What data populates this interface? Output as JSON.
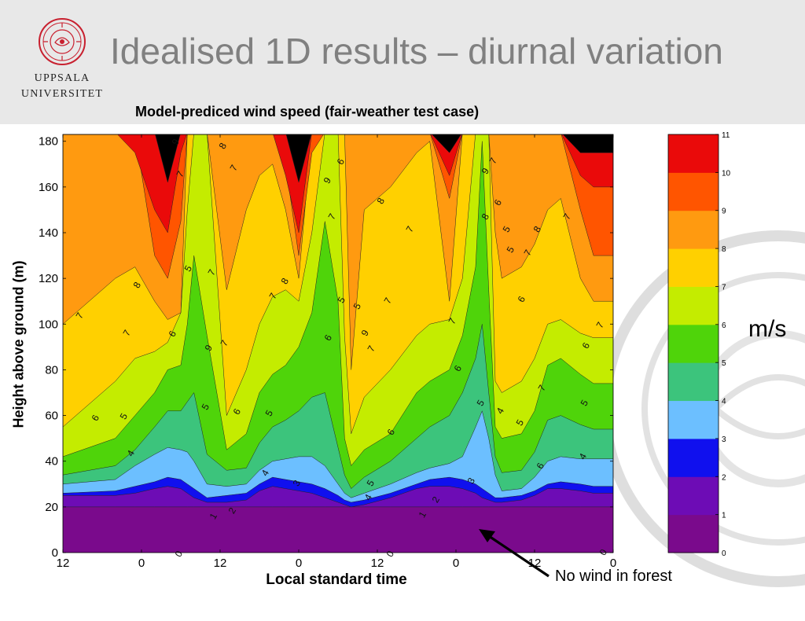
{
  "slide": {
    "title": "Idealised 1D results – diurnal variation",
    "logo_line1": "UPPSALA",
    "logo_line2": "UNIVERSITET",
    "colors": {
      "header_band": "#e8e8e8",
      "title": "#808080"
    }
  },
  "chart_data": {
    "type": "contour",
    "title": "Model-prediced wind speed (fair-weather test case)",
    "xlabel": "Local standard time",
    "ylabel": "Height above ground (m)",
    "x_ticks": [
      "12",
      "0",
      "12",
      "0",
      "12",
      "0",
      "12",
      "0"
    ],
    "y_ticks": [
      0,
      20,
      40,
      60,
      80,
      100,
      120,
      140,
      160,
      180
    ],
    "ylim": [
      0,
      183
    ],
    "x_range_hours": [
      0,
      84
    ],
    "colorbar": {
      "levels": [
        0,
        1,
        2,
        3,
        4,
        5,
        6,
        7,
        8,
        9,
        10,
        11
      ],
      "colors": [
        "#7a0a8c",
        "#6d0cb5",
        "#1010ee",
        "#6cbfff",
        "#3cc47c",
        "#4fd40a",
        "#c4ec00",
        "#ffd000",
        "#ff9a10",
        "#ff5500",
        "#ea0a0a"
      ],
      "unit": "m/s"
    },
    "contour_labels": [
      "0",
      "1",
      "2",
      "3",
      "4",
      "5",
      "6",
      "7",
      "8",
      "9"
    ],
    "annotation": "No wind in forest"
  }
}
